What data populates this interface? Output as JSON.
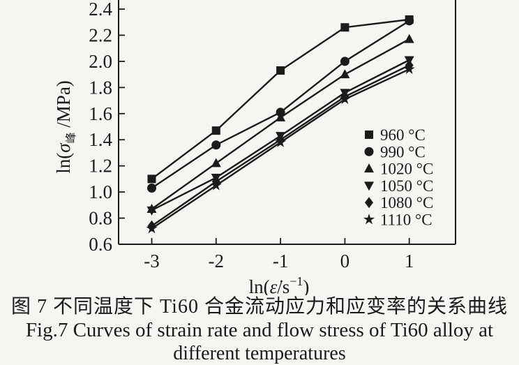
{
  "page": {
    "paper_color": "#f5f5f2",
    "ink_color": "#1b1b1b"
  },
  "chart_data": {
    "type": "line",
    "title": "",
    "xlabel": "ln(ε̇/s⁻¹)",
    "ylabel": "ln(σ峰/MPa)",
    "xlabel_parts": {
      "prefix": "ln(",
      "var": "ε̇",
      "mid": "/s",
      "sup": "−1",
      "suffix": ")"
    },
    "ylabel_parts": {
      "prefix": "ln(",
      "var": "σ",
      "sub": "峰",
      "suffix": " /MPa)"
    },
    "x": [
      -3,
      -2,
      -1,
      0,
      1
    ],
    "x_tick_labels": [
      "-3",
      "-2",
      "-1",
      "0",
      "1"
    ],
    "y_tick_values": [
      0.6,
      0.8,
      1.0,
      1.2,
      1.4,
      1.6,
      1.8,
      2.0,
      2.2,
      2.4
    ],
    "y_tick_labels": [
      "0.6",
      "0.8",
      "1.0",
      "1.2",
      "1.4",
      "1.6",
      "1.8",
      "2.0",
      "2.2",
      "2.4"
    ],
    "xlim": [
      -3.5,
      1.7
    ],
    "ylim": [
      0.6,
      2.4
    ],
    "grid": false,
    "legend_position": "inside right",
    "line_color": "#1b1b1b",
    "series": [
      {
        "name": "960 °C",
        "marker": "square",
        "values": [
          1.1,
          1.47,
          1.93,
          2.26,
          2.32
        ]
      },
      {
        "name": "990 °C",
        "marker": "circle",
        "values": [
          1.03,
          1.36,
          1.61,
          2.0,
          2.31
        ]
      },
      {
        "name": "1020 °C",
        "marker": "triangle-up",
        "values": [
          0.87,
          1.22,
          1.57,
          1.9,
          2.17
        ]
      },
      {
        "name": "1050 °C",
        "marker": "triangle-down",
        "values": [
          0.86,
          1.11,
          1.43,
          1.76,
          2.01
        ]
      },
      {
        "name": "1080 °C",
        "marker": "diamond",
        "values": [
          0.74,
          1.08,
          1.4,
          1.73,
          1.97
        ]
      },
      {
        "name": "1110 °C",
        "marker": "star",
        "values": [
          0.72,
          1.05,
          1.38,
          1.71,
          1.94
        ]
      }
    ]
  },
  "caption": {
    "zh": "图 7  不同温度下 Ti60 合金流动应力和应变率的关系曲线",
    "en1": "Fig.7  Curves of strain rate and flow stress of Ti60 alloy at",
    "en2": "different temperatures"
  }
}
